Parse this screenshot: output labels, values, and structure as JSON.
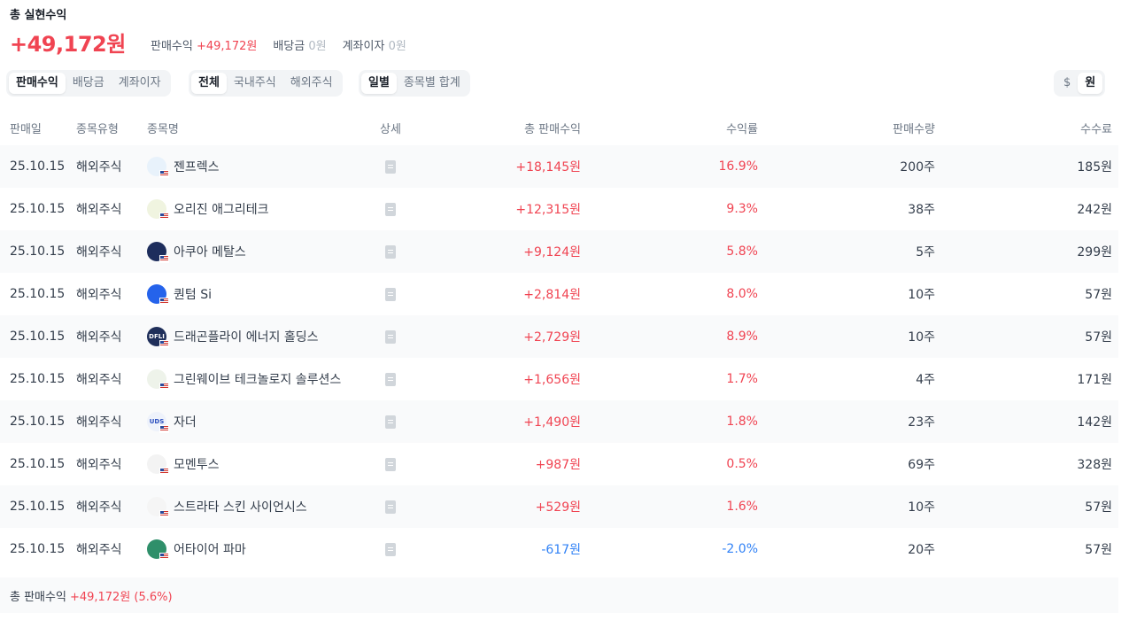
{
  "header": {
    "title": "총 실현수익",
    "total": "+49,172원",
    "summary": [
      {
        "label": "판매수익",
        "value": "+49,172원"
      },
      {
        "label": "배당금",
        "value": "0원"
      },
      {
        "label": "계좌이자",
        "value": "0원"
      }
    ]
  },
  "filters": {
    "income_type": [
      "판매수익",
      "배당금",
      "계좌이자"
    ],
    "market": [
      "전체",
      "국내주식",
      "해외주식"
    ],
    "grouping": [
      "일별",
      "종목별 합계"
    ],
    "currency": [
      "$",
      "원"
    ]
  },
  "table": {
    "columns": [
      "판매일",
      "종목유형",
      "종목명",
      "상세",
      "총 판매수익",
      "수익률",
      "판매수량",
      "수수료"
    ],
    "rows": [
      {
        "date": "25.10.15",
        "type": "해외주식",
        "name": "젠프렉스",
        "profit": "+18,145원",
        "rate": "16.9%",
        "qty": "200주",
        "fee": "185원",
        "logo_color": "#e8f2fb",
        "logo_text": ""
      },
      {
        "date": "25.10.15",
        "type": "해외주식",
        "name": "오리진 애그리테크",
        "profit": "+12,315원",
        "rate": "9.3%",
        "qty": "38주",
        "fee": "242원",
        "logo_color": "#f0f4e0",
        "logo_text": ""
      },
      {
        "date": "25.10.15",
        "type": "해외주식",
        "name": "아쿠아 메탈스",
        "profit": "+9,124원",
        "rate": "5.8%",
        "qty": "5주",
        "fee": "299원",
        "logo_color": "#1d2d5c",
        "logo_text": ""
      },
      {
        "date": "25.10.15",
        "type": "해외주식",
        "name": "퀀텀 Si",
        "profit": "+2,814원",
        "rate": "8.0%",
        "qty": "10주",
        "fee": "57원",
        "logo_color": "#2563eb",
        "logo_text": ""
      },
      {
        "date": "25.10.15",
        "type": "해외주식",
        "name": "드래곤플라이 에너지 홀딩스",
        "profit": "+2,729원",
        "rate": "8.9%",
        "qty": "10주",
        "fee": "57원",
        "logo_color": "#1f2f5a",
        "logo_text": "DFLI"
      },
      {
        "date": "25.10.15",
        "type": "해외주식",
        "name": "그린웨이브 테크놀로지 솔루션스",
        "profit": "+1,656원",
        "rate": "1.7%",
        "qty": "4주",
        "fee": "171원",
        "logo_color": "#eef3ea",
        "logo_text": ""
      },
      {
        "date": "25.10.15",
        "type": "해외주식",
        "name": "자더",
        "profit": "+1,490원",
        "rate": "1.8%",
        "qty": "23주",
        "fee": "142원",
        "logo_color": "#eef2fb",
        "logo_text": "UDS"
      },
      {
        "date": "25.10.15",
        "type": "해외주식",
        "name": "모멘투스",
        "profit": "+987원",
        "rate": "0.5%",
        "qty": "69주",
        "fee": "328원",
        "logo_color": "#f3f3f3",
        "logo_text": ""
      },
      {
        "date": "25.10.15",
        "type": "해외주식",
        "name": "스트라타 스킨 사이언시스",
        "profit": "+529원",
        "rate": "1.6%",
        "qty": "10주",
        "fee": "57원",
        "logo_color": "#f5f5f5",
        "logo_text": ""
      },
      {
        "date": "25.10.15",
        "type": "해외주식",
        "name": "어타이어 파마",
        "profit": "-617원",
        "rate": "-2.0%",
        "qty": "20주",
        "fee": "57원",
        "logo_color": "#2f8f6a",
        "logo_text": ""
      }
    ]
  },
  "footer": {
    "label": "총 판매수익",
    "value": "+49,172원 (5.6%)"
  },
  "colors": {
    "positive": "#f04452",
    "negative": "#3182f6"
  }
}
